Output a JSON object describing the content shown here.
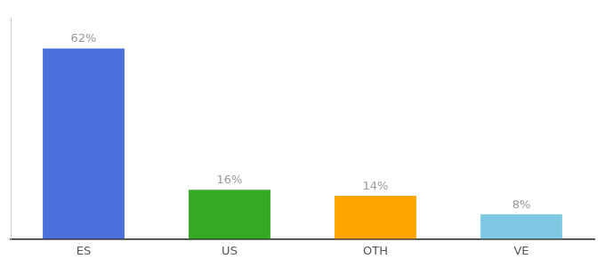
{
  "chart_data": {
    "type": "bar",
    "categories": [
      "ES",
      "US",
      "OTH",
      "VE"
    ],
    "values": [
      62,
      16,
      14,
      8
    ],
    "value_labels": [
      "62%",
      "16%",
      "14%",
      "8%"
    ],
    "colors": [
      "#4B6FDB",
      "#33AA22",
      "#FFA500",
      "#7EC8E3"
    ],
    "ylim": [
      0,
      72
    ],
    "data_labels": true,
    "grid": false,
    "tick_labels": "x"
  }
}
